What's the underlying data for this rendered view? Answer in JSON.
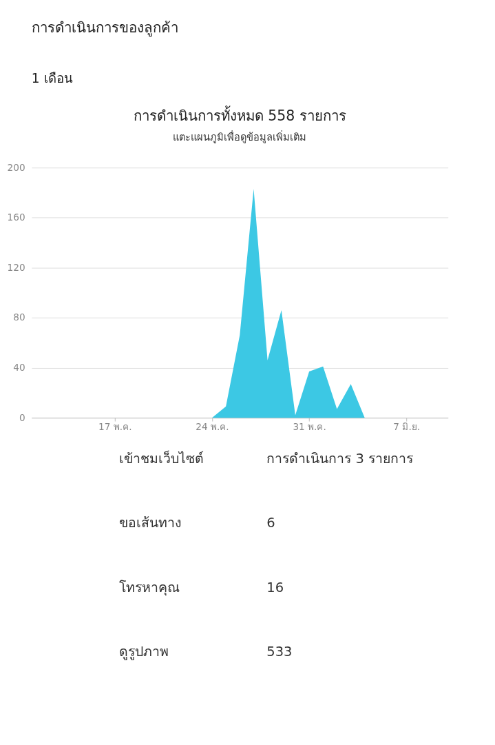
{
  "chart_data": {
    "type": "area",
    "title": "การดำเนินการทั้งหมด 558 รายการ",
    "subtitle": "แตะแผนภูมิเพื่อดูข้อมูลเพิ่มเติม",
    "x": [
      "--05-24",
      "--05-25",
      "--05-26",
      "--05-27",
      "--05-28",
      "--05-29",
      "--05-30",
      "--05-31",
      "--06-01",
      "--06-02",
      "--06-03",
      "--06-04"
    ],
    "series": [
      {
        "color": "#3cc8e4",
        "values": [
          0,
          9,
          66,
          183,
          46,
          86,
          2,
          37,
          41,
          7,
          27,
          0
        ]
      }
    ],
    "xlim": [
      "--05-11",
      "--06-10"
    ],
    "xticks": [
      {
        "value": "--05-17",
        "label": "17 พ.ค."
      },
      {
        "value": "--05-24",
        "label": "24 พ.ค."
      },
      {
        "value": "--05-31",
        "label": "31 พ.ค."
      },
      {
        "value": "--06-07",
        "label": "7 มิ.ย."
      }
    ],
    "ylim": [
      0,
      200
    ],
    "yticks": [
      0,
      40,
      80,
      120,
      160,
      200
    ],
    "grid": "y",
    "annotations": [
      "การดำเนินการของลูกค้า",
      "1 เดือน",
      "เข้าชมเว็บไซต์",
      "การดำเนินการ 3 รายการ",
      "ขอเส้นทาง",
      "6",
      "โทรหาคุณ",
      "16",
      "ดูรูปภาพ",
      "533"
    ]
  }
}
